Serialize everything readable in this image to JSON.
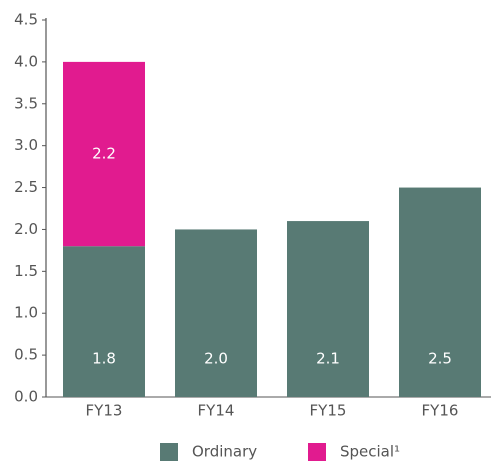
{
  "chart_data": {
    "type": "stacked_bar",
    "categories": [
      "FY13",
      "FY14",
      "FY15",
      "FY16"
    ],
    "series": [
      {
        "name": "Ordinary",
        "color": "#587a74",
        "values": [
          1.8,
          2.0,
          2.1,
          2.5
        ],
        "value_labels": [
          "1.8",
          "2.0",
          "2.1",
          "2.5"
        ]
      },
      {
        "name": "Special¹",
        "color": "#e11b8f",
        "values": [
          2.2,
          null,
          null,
          null
        ]
      }
    ],
    "ylim": [
      0,
      4.5
    ],
    "yticks": [
      {
        "value": 0,
        "label": "0.0"
      },
      0.5,
      {
        "value": 1,
        "label": "1.0"
      },
      1.5,
      {
        "value": 2,
        "label": "2.0"
      },
      2.5,
      {
        "value": 3,
        "label": "3.0"
      },
      3.5,
      {
        "value": 4,
        "label": "4.0"
      },
      4.5
    ]
  }
}
